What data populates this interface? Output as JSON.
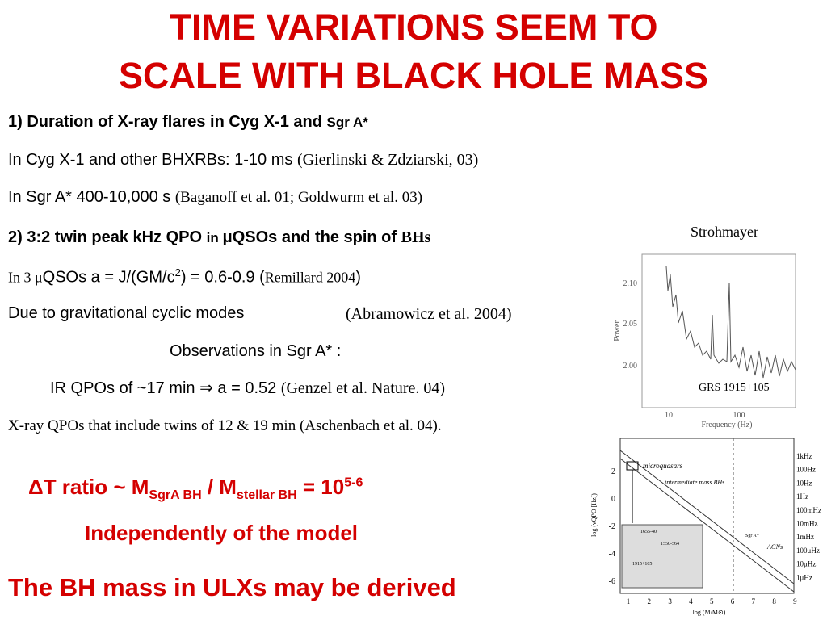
{
  "title": {
    "lines": [
      "TIME VARIATIONS SEEM TO",
      "SCALE WITH BLACK HOLE MASS"
    ]
  },
  "body": {
    "point1": {
      "heading": [
        "1) Duration of X-ray flares in Cyg X-1 and ",
        "Sgr A*"
      ],
      "cyg": [
        "In Cyg X-1 and other BHXRBs: 1-10 ms ",
        "(Gierlinski & Zdziarski, 03)"
      ],
      "sgr": [
        "In Sgr A* 400-10,000 s ",
        "(Baganoff et al.  01; Goldwurm et al. 03)"
      ]
    },
    "point2": {
      "heading": [
        "2) 3:2 twin peak kHz QPO ",
        "in ",
        "μQSOs and the spin of ",
        "BHs"
      ],
      "spin": [
        "In 3 μ",
        "QSOs  a  = J/(GM/c",
        "2",
        ") = 0.6-0.9 (",
        "Remillard 2004",
        ")"
      ],
      "modes": [
        "Due to gravitational cyclic modes",
        "(Abramowicz et al. 2004)"
      ],
      "observations": "Observations in Sgr A* :",
      "ir": [
        "IR QPOs of ~17 min ",
        "⇒",
        " a = 0.52 ",
        "(Genzel et al. Nature. 04)"
      ],
      "xray": "X-ray QPOs that include twins of 12 & 19 min (Aschenbach et al. 04)."
    },
    "conclusions": {
      "ratio": [
        "ΔT ratio ~ M",
        "SgrA BH",
        " / M",
        "stellar BH",
        " = 10",
        "5-6"
      ],
      "model": "Independently of the model",
      "ulx": "The BH mass in ULXs may be derived"
    }
  },
  "figures": [
    {
      "caption": "Strohmayer",
      "yticks": [
        "2.10",
        "2.05",
        "2.00"
      ],
      "ylabel": "Power",
      "xticks": [
        "10",
        "100"
      ],
      "xlabel": "Frequency (Hz)",
      "label": "GRS 1915+105"
    },
    {
      "yticks": [
        "2",
        "0",
        "-2",
        "-4",
        "-6"
      ],
      "ylabel": "log (νQPO [Hz])",
      "freq_labels": [
        "1kHz",
        "100Hz",
        "10Hz",
        "1Hz",
        "100mHz",
        "10mHz",
        "1mHz",
        "100μHz",
        "10μHz",
        "1μHz"
      ],
      "xticks": [
        "1",
        "2",
        "3",
        "4",
        "5",
        "6",
        "7",
        "8",
        "9"
      ],
      "xlabel": "log (M/M⊙)",
      "labels": [
        "microquasars",
        "intermediate mass BHs",
        "Sgr A*",
        "AGNs",
        "1655-40",
        "1550-564",
        "1915+105"
      ]
    }
  ]
}
